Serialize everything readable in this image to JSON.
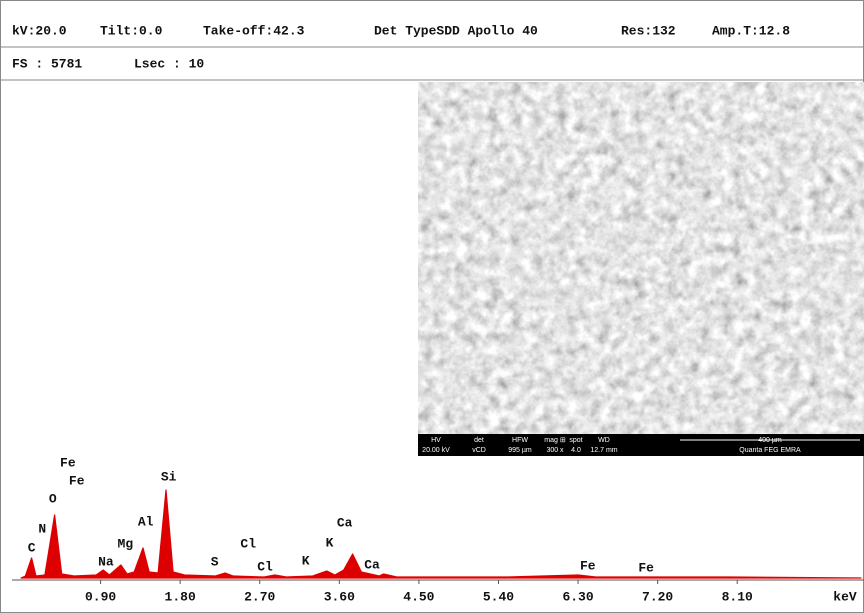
{
  "header": {
    "row1": [
      "kV:20.0",
      "Tilt:0.0",
      "Take-off:42.3",
      "Det TypeSDD Apollo 40",
      "Res:132",
      "Amp.T:12.8"
    ],
    "row2": [
      "FS : 5781",
      "Lsec : 10"
    ]
  },
  "sem_image": {
    "info_labels": [
      "HV",
      "det",
      "HFW",
      "mag ⊞",
      "spot",
      "WD"
    ],
    "info_values": [
      "20.00 kV",
      "vCD",
      "995 µm",
      "300 x",
      "4.0",
      "12.7 mm"
    ],
    "scale_bar": "400 µm",
    "instrument": "Quanta FEG EMRA"
  },
  "chart_data": {
    "type": "line",
    "color": "#dd0000",
    "x": [
      0.0,
      0.05,
      0.12,
      0.17,
      0.27,
      0.38,
      0.46,
      0.6,
      0.85,
      0.93,
      1.0,
      1.13,
      1.2,
      1.28,
      1.38,
      1.45,
      1.55,
      1.64,
      1.72,
      1.85,
      2.2,
      2.31,
      2.4,
      2.75,
      2.87,
      3.0,
      3.3,
      3.46,
      3.55,
      3.65,
      3.75,
      3.85,
      4.05,
      4.1,
      4.25,
      5.5,
      6.3,
      6.5,
      8.0,
      9.5
    ],
    "values": [
      0,
      2,
      20,
      2,
      3,
      63,
      4,
      2,
      3,
      8,
      3,
      13,
      4,
      6,
      30,
      6,
      5,
      88,
      6,
      3,
      2,
      5,
      2,
      1,
      3,
      1,
      2,
      7,
      3,
      8,
      24,
      6,
      2,
      4,
      1,
      1,
      3,
      1,
      1,
      0
    ],
    "xlim": [
      0,
      9.5
    ],
    "xticks": [
      {
        "value": 0.9,
        "label": "0.90"
      },
      {
        "value": 1.8,
        "label": "1.80"
      },
      {
        "value": 2.7,
        "label": "2.70"
      },
      {
        "value": 3.6,
        "label": "3.60"
      },
      {
        "value": 4.5,
        "label": "4.50"
      },
      {
        "value": 5.4,
        "label": "5.40"
      },
      {
        "value": 6.3,
        "label": "6.30"
      },
      {
        "value": 7.2,
        "label": "7.20"
      },
      {
        "value": 8.1,
        "label": "8.10"
      }
    ],
    "x_label": "keV",
    "annotations": [
      {
        "text": "C",
        "x": 0.12,
        "y": 30
      },
      {
        "text": "N",
        "x": 0.24,
        "y": 49
      },
      {
        "text": "O",
        "x": 0.36,
        "y": 79
      },
      {
        "text": "Fe",
        "x": 0.53,
        "y": 115
      },
      {
        "text": "Fe",
        "x": 0.63,
        "y": 97
      },
      {
        "text": "Na",
        "x": 0.96,
        "y": 16
      },
      {
        "text": "Mg",
        "x": 1.18,
        "y": 34
      },
      {
        "text": "Al",
        "x": 1.41,
        "y": 56
      },
      {
        "text": "Si",
        "x": 1.67,
        "y": 101
      },
      {
        "text": "S",
        "x": 2.19,
        "y": 16
      },
      {
        "text": "Cl",
        "x": 2.57,
        "y": 34
      },
      {
        "text": "Cl",
        "x": 2.76,
        "y": 11
      },
      {
        "text": "K",
        "x": 3.22,
        "y": 17
      },
      {
        "text": "K",
        "x": 3.49,
        "y": 35
      },
      {
        "text": "Ca",
        "x": 3.66,
        "y": 55
      },
      {
        "text": "Ca",
        "x": 3.97,
        "y": 13
      },
      {
        "text": "Fe",
        "x": 6.41,
        "y": 12
      },
      {
        "text": "Fe",
        "x": 7.07,
        "y": 10
      }
    ]
  }
}
